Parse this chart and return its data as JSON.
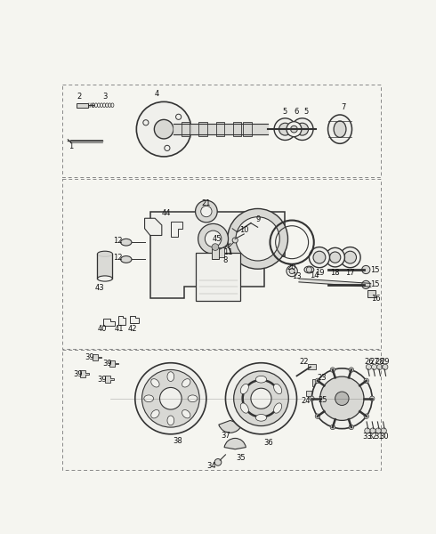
{
  "bg_color": "#f5f5f0",
  "lc": "#333333",
  "tc": "#111111",
  "fig_width": 4.9,
  "fig_height": 6.0,
  "dpi": 100
}
